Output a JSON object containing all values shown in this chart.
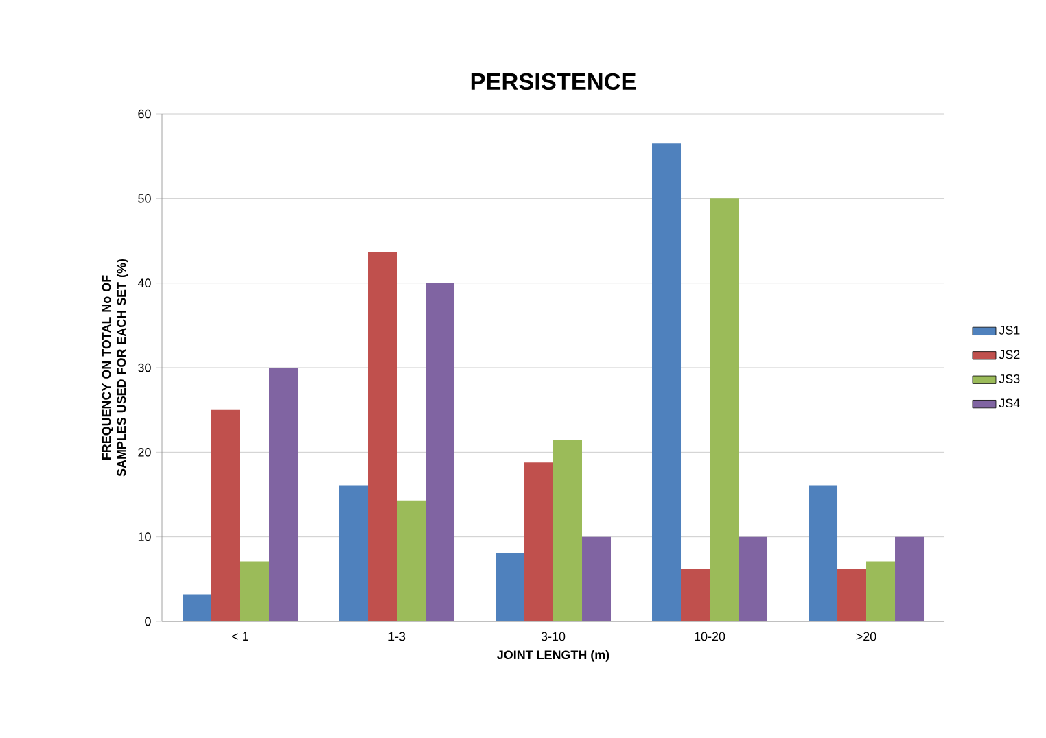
{
  "chart_data": {
    "type": "bar",
    "title": "PERSISTENCE",
    "xlabel": "JOINT LENGTH (m)",
    "ylabel": "FREQUENCY ON TOTAL No OF SAMPLES USED FOR EACH SET (%)",
    "categories": [
      "< 1",
      "1-3",
      "3-10",
      "10-20",
      ">20"
    ],
    "series": [
      {
        "name": "JS1",
        "color": "#4f81bd",
        "values": [
          3.2,
          16.1,
          8.1,
          56.5,
          16.1
        ]
      },
      {
        "name": "JS2",
        "color": "#c0504d",
        "values": [
          25,
          43.7,
          18.8,
          6.2,
          6.2
        ]
      },
      {
        "name": "JS3",
        "color": "#9bbb59",
        "values": [
          7.1,
          14.3,
          21.4,
          50,
          7.1
        ]
      },
      {
        "name": "JS4",
        "color": "#8064a2",
        "values": [
          30,
          40,
          10,
          10,
          10
        ]
      }
    ],
    "ylim": [
      0,
      60
    ],
    "yticks": [
      0,
      10,
      20,
      30,
      40,
      50,
      60
    ],
    "grid": "y",
    "legend": "right"
  }
}
